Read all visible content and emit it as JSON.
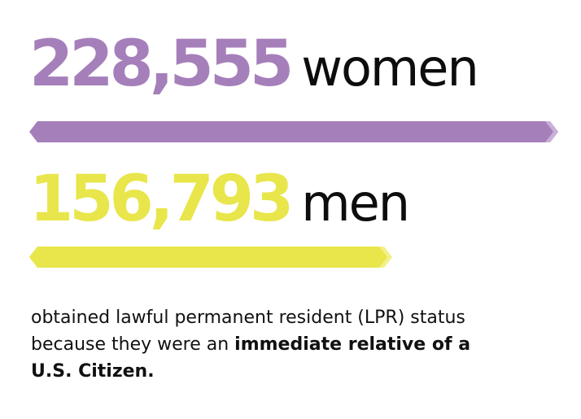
{
  "chart_data": {
    "type": "bar",
    "orientation": "horizontal",
    "series": [
      {
        "name": "women",
        "value": 228555,
        "value_label": "228,555",
        "color": "#a57fba",
        "highlight": "#c9b0d8"
      },
      {
        "name": "men",
        "value": 156793,
        "value_label": "156,793",
        "color": "#e8e64a",
        "highlight": "#f2f088"
      }
    ],
    "caption": {
      "normal": "obtained lawful permanent resident (LPR) status because they were an ",
      "bold": "immediate relative of a U.S. Citizen."
    }
  }
}
